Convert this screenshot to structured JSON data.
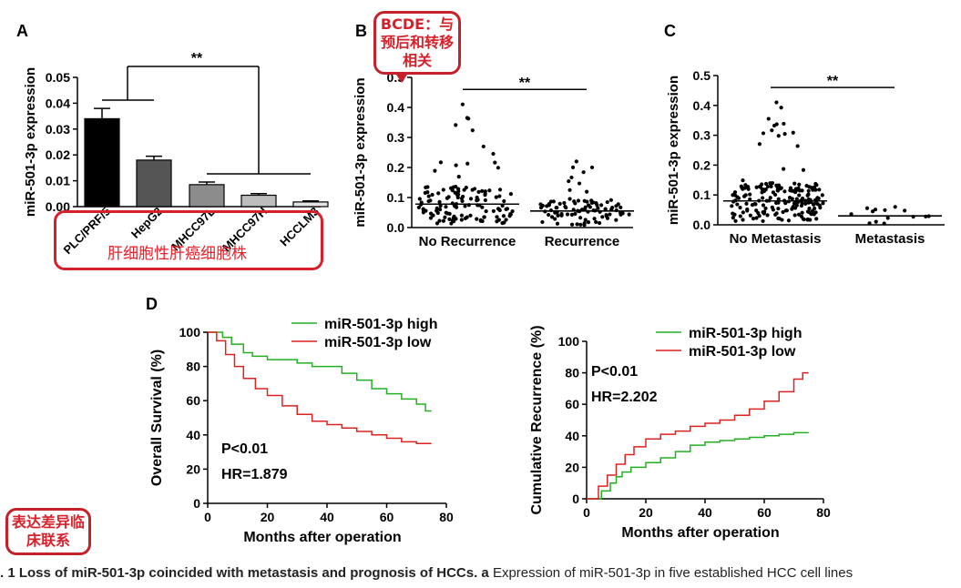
{
  "panels": {
    "a": "A",
    "b": "B",
    "c": "C",
    "d": "D"
  },
  "colors": {
    "bars": [
      "#000000",
      "#555555",
      "#8c8c8c",
      "#bdbdbd",
      "#e4e4e4"
    ],
    "high": "#22b022",
    "low": "#dd2222",
    "annotation": "#d6202a"
  },
  "chart_data": [
    {
      "type": "bar",
      "categories": [
        "PLC/PRF/5",
        "HepG2",
        "MHCC97L",
        "MHCC97H",
        "HCCLM3"
      ],
      "values": [
        0.034,
        0.018,
        0.0085,
        0.0044,
        0.0018
      ],
      "errors": [
        0.004,
        0.0015,
        0.001,
        0.0006,
        0.0004
      ],
      "ylabel": "miR-501-3p expression",
      "ylim": [
        0,
        0.05
      ],
      "yticks": [
        "0.00",
        "0.01",
        "0.02",
        "0.03",
        "0.04",
        "0.05"
      ],
      "significance": "**"
    },
    {
      "type": "scatter",
      "categories": [
        "No Recurrence",
        "Recurrence"
      ],
      "medians": [
        0.078,
        0.055
      ],
      "ylabel": "miR-501-3p expression",
      "ylim": [
        0,
        0.5
      ],
      "yticks": [
        "0.0",
        "0.1",
        "0.2",
        "0.3",
        "0.4",
        "0.5"
      ],
      "significance": "**"
    },
    {
      "type": "scatter",
      "categories": [
        "No Metastasis",
        "Metastasis"
      ],
      "medians": [
        0.08,
        0.03
      ],
      "ylabel": "miR-501-3p expression",
      "ylim": [
        0,
        0.5
      ],
      "yticks": [
        "0.0",
        "0.1",
        "0.2",
        "0.3",
        "0.4",
        "0.5"
      ],
      "significance": "**"
    },
    {
      "type": "line",
      "xlabel": "Months after operation",
      "ylabel": "Overall Survival (%)",
      "xlim": [
        0,
        80
      ],
      "ylim": [
        0,
        100
      ],
      "xticks": [
        "0",
        "20",
        "40",
        "60",
        "80"
      ],
      "yticks": [
        "0",
        "20",
        "40",
        "60",
        "80",
        "100"
      ],
      "series": [
        {
          "name": "miR-501-3p high",
          "x": [
            0,
            5,
            8,
            12,
            15,
            20,
            25,
            30,
            35,
            40,
            45,
            50,
            55,
            60,
            65,
            70,
            73,
            75
          ],
          "y": [
            100,
            97,
            93,
            88,
            86,
            84,
            84,
            82,
            80,
            80,
            76,
            72,
            67,
            64,
            61,
            58,
            54,
            54
          ]
        },
        {
          "name": "miR-501-3p low",
          "x": [
            0,
            3,
            6,
            9,
            12,
            16,
            20,
            25,
            30,
            35,
            40,
            45,
            50,
            55,
            60,
            65,
            70,
            73,
            75
          ],
          "y": [
            100,
            95,
            87,
            80,
            73,
            67,
            63,
            57,
            52,
            48,
            46,
            44,
            42,
            40,
            38,
            36,
            35,
            35,
            35
          ]
        }
      ],
      "annotations": [
        "P<0.01",
        "HR=1.879"
      ]
    },
    {
      "type": "line",
      "xlabel": "Months after operation",
      "ylabel": "Cumulative Recurrence (%)",
      "xlim": [
        0,
        80
      ],
      "ylim": [
        0,
        100
      ],
      "xticks": [
        "0",
        "20",
        "40",
        "60",
        "80"
      ],
      "yticks": [
        "0",
        "20",
        "40",
        "60",
        "80",
        "100"
      ],
      "series": [
        {
          "name": "miR-501-3p high",
          "x": [
            0,
            5,
            8,
            10,
            12,
            15,
            20,
            25,
            30,
            35,
            40,
            45,
            50,
            55,
            60,
            65,
            70,
            75
          ],
          "y": [
            0,
            5,
            10,
            14,
            17,
            20,
            23,
            26,
            30,
            34,
            36,
            37,
            38,
            39,
            40,
            41,
            42,
            42
          ]
        },
        {
          "name": "miR-501-3p low",
          "x": [
            0,
            4,
            7,
            10,
            13,
            16,
            20,
            25,
            30,
            35,
            40,
            45,
            50,
            55,
            60,
            65,
            70,
            73,
            75
          ],
          "y": [
            0,
            8,
            15,
            22,
            28,
            33,
            38,
            41,
            43,
            46,
            48,
            50,
            53,
            57,
            62,
            68,
            76,
            80,
            80
          ]
        }
      ],
      "annotations": [
        "P<0.01",
        "HR=2.202"
      ]
    }
  ],
  "notes": {
    "b": "BCDE：与预后和转移相关",
    "c": "表达差异临床联系",
    "a": "肝细胞性肝癌细胞株"
  },
  "caption": {
    "bold": ". 1 Loss of miR-501-3p coincided with metastasis and prognosis of HCCs. a",
    "text": " Expression of miR-501-3p in five established HCC cell lines"
  }
}
